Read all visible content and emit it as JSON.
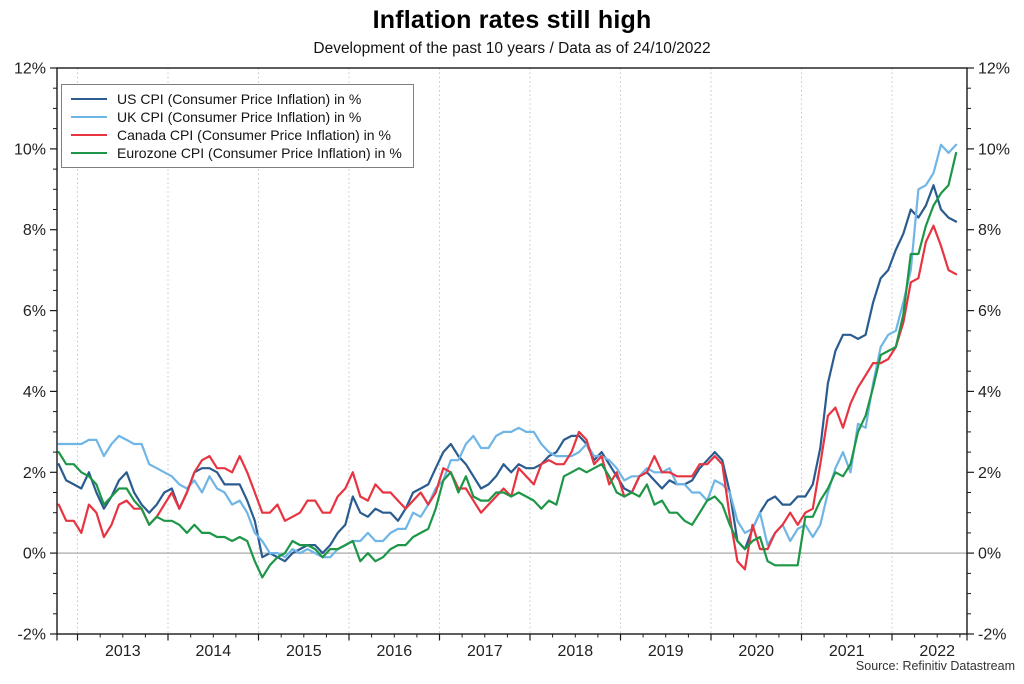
{
  "title": "Inflation rates still high",
  "subtitle": "Development of the past 10 years / Data as of 24/10/2022",
  "source": "Source: Refinitiv Datastream",
  "chart_data": {
    "type": "line",
    "title": "Inflation rates still high",
    "subtitle": "Development of the past 10 years / Data as of 24/10/2022",
    "source": "Source: Refinitiv Datastream",
    "x_unit": "month",
    "x_start": {
      "year": 2012,
      "month": 10
    },
    "x_end": {
      "year": 2022,
      "month": 9
    },
    "x_axis": {
      "tick_years": [
        2013,
        2014,
        2015,
        2016,
        2017,
        2018,
        2019,
        2020,
        2021,
        2022
      ],
      "tick_year_labels": [
        "2013",
        "2014",
        "2015",
        "2016",
        "2017",
        "2018",
        "2019",
        "2020",
        "2021",
        "2022"
      ],
      "range_fractional_years": [
        2012.773,
        2022.829
      ],
      "minor_tick_interval_months": 3,
      "gridlines": "dotted-vertical-at-year-start"
    },
    "y_axis": {
      "unit": "%",
      "min": -2,
      "max": 12,
      "tick_values": [
        12,
        10,
        8,
        6,
        4,
        2,
        0,
        -2
      ],
      "tick_labels": [
        "12%",
        "10%",
        "8%",
        "6%",
        "4%",
        "2%",
        "0%",
        "-2%"
      ],
      "minor_tick_step": 0.5,
      "zero_line": true,
      "mirrored_right_axis": true
    },
    "legend_position": "top-left",
    "series": [
      {
        "id": "us",
        "name": "US CPI (Consumer Price Inflation) in %",
        "color": "#2a5c8f",
        "values": [
          2.2,
          1.8,
          1.7,
          1.6,
          2.0,
          1.5,
          1.1,
          1.4,
          1.8,
          2.0,
          1.5,
          1.2,
          1.0,
          1.2,
          1.5,
          1.6,
          1.1,
          1.5,
          2.0,
          2.1,
          2.1,
          2.0,
          1.7,
          1.7,
          1.7,
          1.3,
          0.8,
          -0.1,
          0.0,
          -0.1,
          -0.2,
          0.0,
          0.1,
          0.2,
          0.2,
          0.0,
          0.2,
          0.5,
          0.7,
          1.4,
          1.0,
          0.9,
          1.1,
          1.0,
          1.0,
          0.8,
          1.1,
          1.5,
          1.6,
          1.7,
          2.1,
          2.5,
          2.7,
          2.4,
          2.2,
          1.9,
          1.6,
          1.7,
          1.9,
          2.2,
          2.0,
          2.2,
          2.1,
          2.1,
          2.2,
          2.4,
          2.5,
          2.8,
          2.9,
          2.9,
          2.7,
          2.3,
          2.5,
          2.2,
          1.9,
          1.6,
          1.5,
          1.9,
          2.0,
          1.8,
          1.6,
          1.8,
          1.7,
          1.7,
          1.8,
          2.1,
          2.3,
          2.5,
          2.3,
          1.5,
          0.3,
          0.1,
          0.6,
          1.0,
          1.3,
          1.4,
          1.2,
          1.2,
          1.4,
          1.4,
          1.7,
          2.6,
          4.2,
          5.0,
          5.4,
          5.4,
          5.3,
          5.4,
          6.2,
          6.8,
          7.0,
          7.5,
          7.9,
          8.5,
          8.3,
          8.6,
          9.1,
          8.5,
          8.3,
          8.2
        ]
      },
      {
        "id": "uk",
        "name": "UK CPI (Consumer Price Inflation) in %",
        "color": "#6fb5e6",
        "values": [
          2.7,
          2.7,
          2.7,
          2.7,
          2.8,
          2.8,
          2.4,
          2.7,
          2.9,
          2.8,
          2.7,
          2.7,
          2.2,
          2.1,
          2.0,
          1.9,
          1.7,
          1.6,
          1.8,
          1.5,
          1.9,
          1.6,
          1.5,
          1.2,
          1.3,
          1.0,
          0.5,
          0.3,
          0.0,
          0.0,
          -0.1,
          0.1,
          0.0,
          0.1,
          0.0,
          -0.1,
          -0.1,
          0.1,
          0.2,
          0.3,
          0.3,
          0.5,
          0.3,
          0.3,
          0.5,
          0.6,
          0.6,
          1.0,
          0.9,
          1.2,
          1.6,
          1.8,
          2.3,
          2.3,
          2.7,
          2.9,
          2.6,
          2.6,
          2.9,
          3.0,
          3.0,
          3.1,
          3.0,
          3.0,
          2.7,
          2.5,
          2.4,
          2.4,
          2.4,
          2.5,
          2.7,
          2.4,
          2.4,
          2.3,
          2.1,
          1.8,
          1.9,
          1.9,
          2.1,
          2.0,
          2.0,
          2.1,
          1.7,
          1.7,
          1.5,
          1.5,
          1.3,
          1.8,
          1.7,
          1.5,
          0.8,
          0.5,
          0.6,
          1.0,
          0.2,
          0.5,
          0.7,
          0.3,
          0.6,
          0.7,
          0.4,
          0.7,
          1.5,
          2.1,
          2.5,
          2.0,
          3.2,
          3.1,
          4.2,
          5.1,
          5.4,
          5.5,
          6.2,
          7.0,
          9.0,
          9.1,
          9.4,
          10.1,
          9.9,
          10.1
        ]
      },
      {
        "id": "canada",
        "name": "Canada CPI (Consumer Price Inflation) in %",
        "color": "#e73440",
        "values": [
          1.2,
          0.8,
          0.8,
          0.5,
          1.2,
          1.0,
          0.4,
          0.7,
          1.2,
          1.3,
          1.1,
          1.1,
          0.7,
          0.9,
          1.2,
          1.5,
          1.1,
          1.5,
          2.0,
          2.3,
          2.4,
          2.1,
          2.1,
          2.0,
          2.4,
          2.0,
          1.5,
          1.0,
          1.0,
          1.2,
          0.8,
          0.9,
          1.0,
          1.3,
          1.3,
          1.0,
          1.0,
          1.4,
          1.6,
          2.0,
          1.4,
          1.3,
          1.7,
          1.5,
          1.5,
          1.3,
          1.1,
          1.3,
          1.5,
          1.2,
          1.5,
          2.1,
          2.0,
          1.6,
          1.6,
          1.3,
          1.0,
          1.2,
          1.4,
          1.6,
          1.4,
          2.1,
          1.9,
          1.7,
          2.2,
          2.3,
          2.2,
          2.2,
          2.5,
          3.0,
          2.8,
          2.2,
          2.4,
          1.7,
          2.0,
          1.4,
          1.5,
          1.9,
          2.0,
          2.4,
          2.0,
          2.0,
          1.9,
          1.9,
          1.9,
          2.2,
          2.2,
          2.4,
          2.2,
          0.9,
          -0.2,
          -0.4,
          0.7,
          0.1,
          0.1,
          0.5,
          0.7,
          1.0,
          0.7,
          1.0,
          1.1,
          2.2,
          3.4,
          3.6,
          3.1,
          3.7,
          4.1,
          4.4,
          4.7,
          4.7,
          4.8,
          5.1,
          5.7,
          6.7,
          6.8,
          7.7,
          8.1,
          7.6,
          7.0,
          6.9
        ]
      },
      {
        "id": "eurozone",
        "name": "Eurozone CPI (Consumer Price Inflation) in %",
        "color": "#1d9747",
        "values": [
          2.5,
          2.2,
          2.2,
          2.0,
          1.9,
          1.7,
          1.2,
          1.4,
          1.6,
          1.6,
          1.3,
          1.1,
          0.7,
          0.9,
          0.8,
          0.8,
          0.7,
          0.5,
          0.7,
          0.5,
          0.5,
          0.4,
          0.4,
          0.3,
          0.4,
          0.3,
          -0.2,
          -0.6,
          -0.3,
          -0.1,
          0.0,
          0.3,
          0.2,
          0.2,
          0.1,
          -0.1,
          0.1,
          0.1,
          0.2,
          0.3,
          -0.2,
          0.0,
          -0.2,
          -0.1,
          0.1,
          0.2,
          0.2,
          0.4,
          0.5,
          0.6,
          1.1,
          1.8,
          2.0,
          1.5,
          1.9,
          1.4,
          1.3,
          1.3,
          1.5,
          1.5,
          1.4,
          1.5,
          1.4,
          1.3,
          1.1,
          1.3,
          1.2,
          1.9,
          2.0,
          2.1,
          2.0,
          2.1,
          2.2,
          1.9,
          1.5,
          1.4,
          1.5,
          1.4,
          1.7,
          1.2,
          1.3,
          1.0,
          1.0,
          0.8,
          0.7,
          1.0,
          1.3,
          1.4,
          1.2,
          0.7,
          0.3,
          0.1,
          0.3,
          0.4,
          -0.2,
          -0.3,
          -0.3,
          -0.3,
          -0.3,
          0.9,
          0.9,
          1.3,
          1.6,
          2.0,
          1.9,
          2.2,
          3.0,
          3.4,
          4.1,
          4.9,
          5.0,
          5.1,
          5.9,
          7.4,
          7.4,
          8.1,
          8.6,
          8.9,
          9.1,
          9.9
        ]
      }
    ]
  }
}
